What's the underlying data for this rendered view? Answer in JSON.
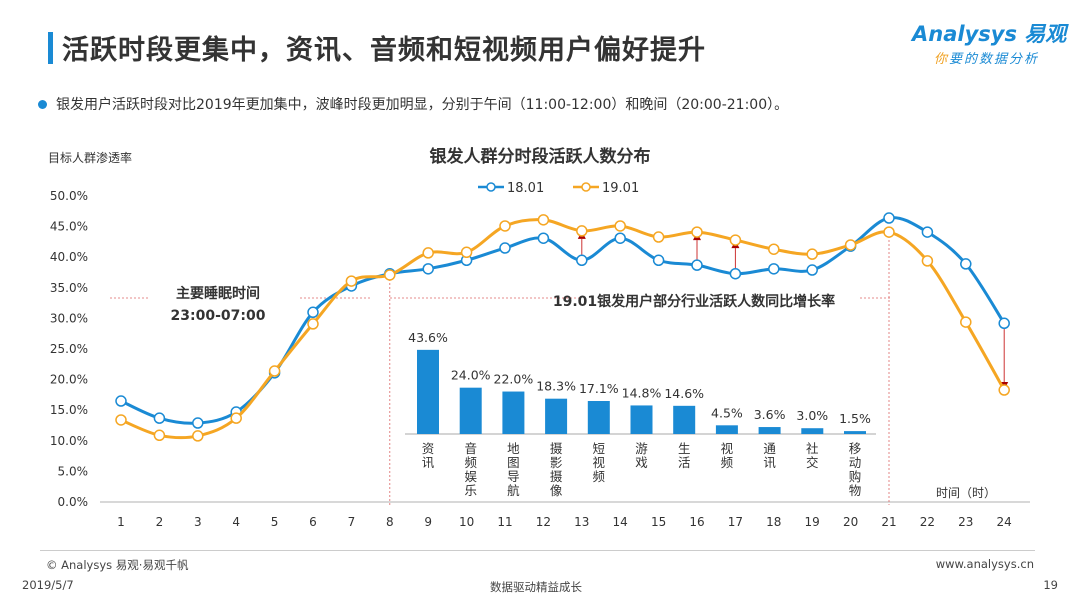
{
  "header": {
    "title": "活跃时段更集中，资讯、音频和短视频用户偏好提升",
    "logo_main": "Analysys 易观",
    "logo_sub_first": "你",
    "logo_sub_rest": "要的数据分析"
  },
  "bullet": "银发用户活跃时段对比2019年更加集中，波峰时段更加明显，分别于午间（11:00-12:00）和晚间（20:00-21:00）。",
  "chart_data": [
    {
      "type": "line",
      "title": "银发人群分时段活跃人数分布",
      "ylabel": "目标人群渗透率",
      "xlabel": "时间（时）",
      "ylim": [
        0,
        50
      ],
      "yticks": [
        "0.0%",
        "5.0%",
        "10.0%",
        "15.0%",
        "20.0%",
        "25.0%",
        "30.0%",
        "35.0%",
        "40.0%",
        "45.0%",
        "50.0%"
      ],
      "x": [
        1,
        2,
        3,
        4,
        5,
        6,
        7,
        8,
        9,
        10,
        11,
        12,
        13,
        14,
        15,
        16,
        17,
        18,
        19,
        20,
        21,
        22,
        23,
        24
      ],
      "legend_position": "top",
      "series": [
        {
          "name": "18.01",
          "color": "#1a8ad4",
          "values": [
            16.5,
            13.7,
            12.9,
            14.7,
            21.1,
            31.0,
            35.3,
            37.3,
            38.1,
            39.5,
            41.5,
            43.1,
            39.5,
            43.1,
            39.5,
            38.7,
            37.3,
            38.1,
            37.9,
            41.8,
            46.4,
            44.1,
            38.9,
            29.2
          ]
        },
        {
          "name": "19.01",
          "color": "#f5a623",
          "values": [
            13.4,
            10.9,
            10.8,
            13.7,
            21.4,
            29.1,
            36.1,
            37.1,
            40.7,
            40.8,
            45.1,
            46.1,
            44.3,
            45.1,
            43.3,
            44.1,
            42.8,
            41.3,
            40.5,
            42.0,
            44.1,
            39.4,
            29.4,
            18.3
          ]
        }
      ],
      "annotation_sleep": [
        "主要睡眠时间",
        "23:00-07:00"
      ]
    },
    {
      "type": "bar",
      "title": "19.01银发用户部分行业活跃人数同比增长率",
      "categories": [
        "资讯",
        "音频娱乐",
        "地图导航",
        "摄影摄像",
        "短视频",
        "游戏",
        "生活",
        "视频",
        "通讯",
        "社交",
        "移动购物"
      ],
      "values": [
        43.6,
        24.0,
        22.0,
        18.3,
        17.1,
        14.8,
        14.6,
        4.5,
        3.6,
        3.0,
        1.5
      ],
      "labels": [
        "43.6%",
        "24.0%",
        "22.0%",
        "18.3%",
        "17.1%",
        "14.8%",
        "14.6%",
        "4.5%",
        "3.6%",
        "3.0%",
        "1.5%"
      ],
      "color": "#1a8ad4"
    }
  ],
  "footer": {
    "copyright": "© Analysys 易观·易观千帆",
    "website": "www.analysys.cn",
    "date": "2019/5/7",
    "slogan": "数据驱动精益成长",
    "page": "19"
  }
}
